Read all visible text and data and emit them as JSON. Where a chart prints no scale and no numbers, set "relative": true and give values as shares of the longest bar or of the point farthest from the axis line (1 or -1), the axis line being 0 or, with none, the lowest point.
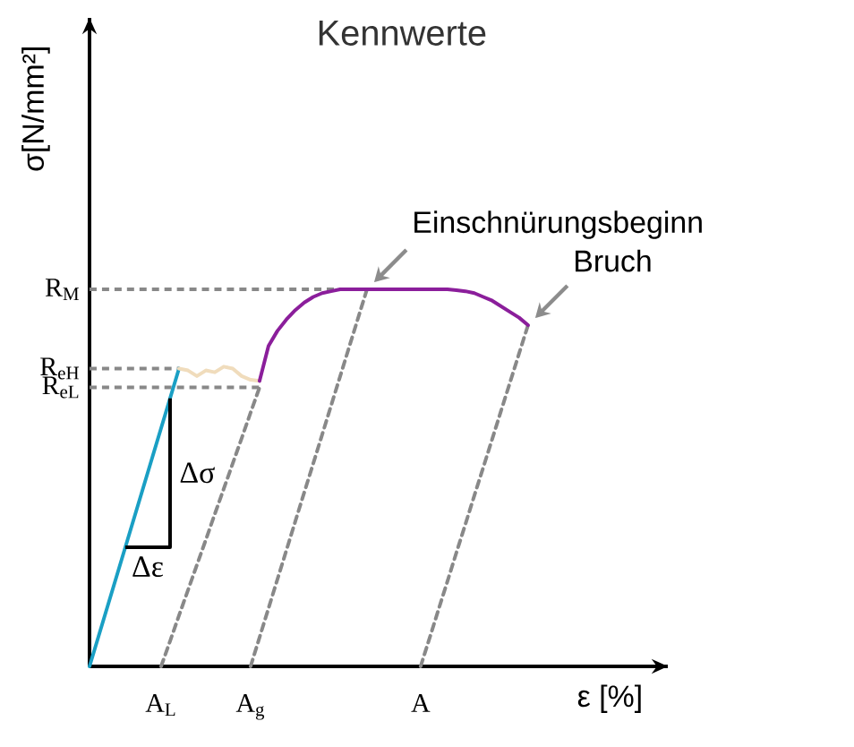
{
  "chart_data": {
    "type": "line",
    "title": "Kennwerte",
    "xlabel": "ε [%]",
    "ylabel": "σ[N/mm²]",
    "relative": true,
    "categories": [
      null,
      null,
      null,
      null,
      null,
      null,
      null,
      null,
      "A$_{L}$",
      null,
      null,
      null,
      null,
      null,
      null,
      null,
      null,
      null,
      "A$_{g}$",
      null,
      null,
      null,
      null,
      null,
      null,
      null,
      null,
      null,
      null,
      null,
      null,
      null,
      null,
      null,
      null,
      null,
      null,
      "A",
      null,
      null,
      null,
      null,
      null,
      null,
      null,
      null,
      null,
      null,
      null,
      null,
      null,
      null,
      null,
      null,
      null,
      null,
      null,
      null,
      null,
      null
    ],
    "ref_lines": [
      {
        "axis": "y",
        "value": 1.0,
        "label": "R$_{M}$",
        "color": "#888888",
        "line_style": "dashed"
      },
      {
        "axis": "y",
        "value": 0.79,
        "label": "R$_{eH}$",
        "color": "#888888",
        "line_style": "dashed"
      },
      {
        "axis": "y",
        "value": 0.74,
        "label": "R$_{eL}$",
        "color": "#888888",
        "line_style": "dashed"
      }
    ],
    "series": [
      {
        "color": "#888888",
        "line_style": "dashed",
        "values": [
          null,
          null,
          null,
          null,
          null,
          null,
          null,
          null,
          0,
          0.067,
          0.135,
          0.202,
          0.269,
          0.336,
          0.404,
          0.471,
          0.538,
          0.605,
          0.673,
          0.74,
          null,
          null,
          null,
          null,
          null,
          null,
          null,
          null,
          null,
          null,
          null,
          null,
          null,
          null,
          null,
          null,
          null,
          null,
          null,
          null,
          null,
          null,
          null,
          null,
          null,
          null,
          null,
          null,
          null,
          null,
          null,
          null,
          null,
          null,
          null,
          null,
          null,
          null,
          null,
          null
        ]
      },
      {
        "color": "#888888",
        "line_style": "dashed",
        "values": [
          null,
          null,
          null,
          null,
          null,
          null,
          null,
          null,
          null,
          null,
          null,
          null,
          null,
          null,
          null,
          null,
          null,
          null,
          0,
          0.077,
          0.154,
          0.231,
          0.308,
          0.385,
          0.462,
          0.538,
          0.615,
          0.692,
          0.769,
          0.846,
          0.923,
          1.0,
          null,
          null,
          null,
          null,
          null,
          null,
          null,
          null,
          null,
          null,
          null,
          null,
          null,
          null,
          null,
          null,
          null,
          null,
          null,
          null,
          null,
          null,
          null,
          null,
          null,
          null,
          null,
          null
        ]
      },
      {
        "color": "#888888",
        "line_style": "dashed",
        "values": [
          null,
          null,
          null,
          null,
          null,
          null,
          null,
          null,
          null,
          null,
          null,
          null,
          null,
          null,
          null,
          null,
          null,
          null,
          null,
          null,
          null,
          null,
          null,
          null,
          null,
          null,
          null,
          null,
          null,
          null,
          null,
          null,
          null,
          null,
          null,
          null,
          null,
          0,
          0.075,
          0.151,
          0.226,
          0.302,
          0.377,
          0.453,
          0.528,
          0.603,
          0.679,
          0.754,
          0.83,
          0.905,
          null,
          null,
          null,
          null,
          null,
          null,
          null,
          null,
          null,
          null
        ]
      },
      {
        "color": "#1a9fc4",
        "line_style": "solid",
        "values": [
          0,
          0.079,
          0.158,
          0.237,
          0.316,
          0.395,
          0.474,
          0.553,
          0.632,
          0.711,
          0.79,
          null,
          null,
          null,
          null,
          null,
          null,
          null,
          null,
          null,
          null,
          null,
          null,
          null,
          null,
          null,
          null,
          null,
          null,
          null,
          null,
          null,
          null,
          null,
          null,
          null,
          null,
          null,
          null,
          null,
          null,
          null,
          null,
          null,
          null,
          null,
          null,
          null,
          null,
          null,
          null,
          null,
          null,
          null,
          null,
          null,
          null,
          null,
          null,
          null
        ]
      },
      {
        "color": "#f0dcbc",
        "line_style": "solid",
        "values": [
          null,
          null,
          null,
          null,
          null,
          null,
          null,
          null,
          null,
          null,
          0.79,
          0.785,
          0.77,
          0.785,
          0.78,
          0.795,
          0.79,
          0.77,
          0.76,
          0.757,
          null,
          null,
          null,
          null,
          null,
          null,
          null,
          null,
          null,
          null,
          null,
          null,
          null,
          null,
          null,
          null,
          null,
          null,
          null,
          null,
          null,
          null,
          null,
          null,
          null,
          null,
          null,
          null,
          null,
          null,
          null,
          null,
          null,
          null,
          null,
          null,
          null,
          null,
          null,
          null
        ]
      },
      {
        "color": "#8b1e9b",
        "line_style": "solid",
        "values": [
          null,
          null,
          null,
          null,
          null,
          null,
          null,
          null,
          null,
          null,
          null,
          null,
          null,
          null,
          null,
          null,
          null,
          null,
          null,
          0.757,
          0.85,
          0.89,
          0.92,
          0.945,
          0.965,
          0.98,
          0.99,
          0.995,
          1.0,
          1.0,
          1.0,
          1.0,
          1.0,
          1.0,
          1.0,
          1.0,
          1.0,
          1.0,
          1.0,
          1.0,
          1.0,
          0.998,
          0.995,
          0.99,
          0.98,
          0.97,
          0.955,
          0.94,
          0.925,
          0.905,
          null,
          null,
          null,
          null,
          null,
          null,
          null,
          null,
          null,
          null
        ]
      }
    ],
    "annotations": [
      "Einschnürungsbeginn",
      "Bruch",
      "Δσ",
      "Δε"
    ]
  }
}
